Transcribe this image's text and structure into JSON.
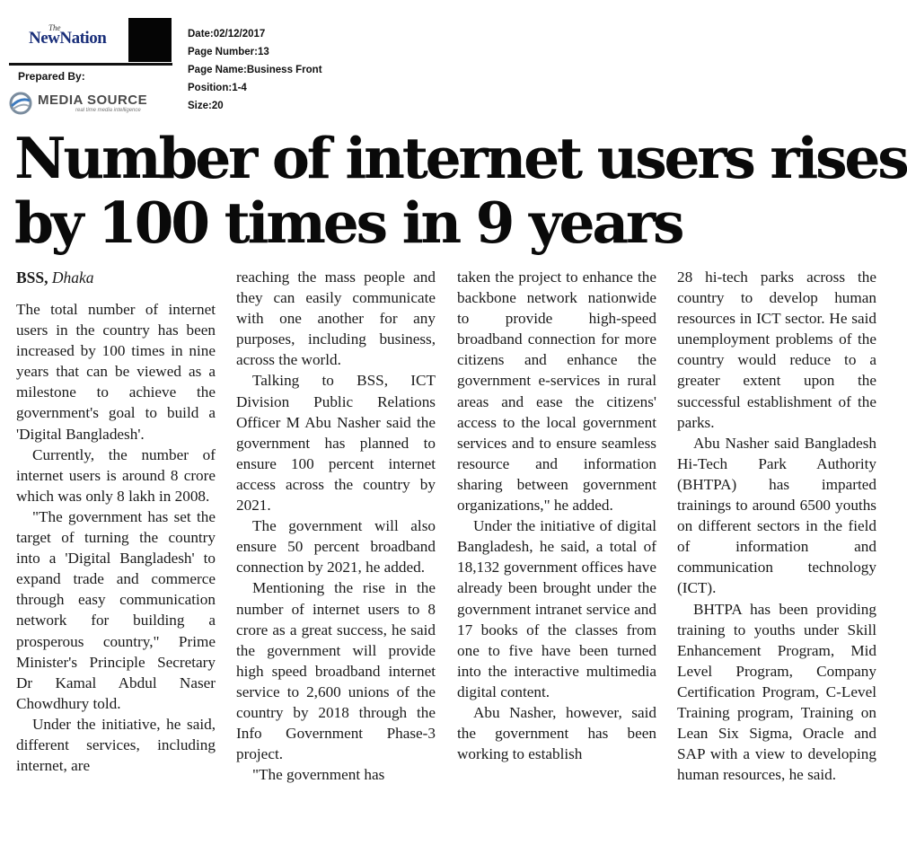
{
  "masthead": {
    "logo_small": "The",
    "logo_name": "NewNation",
    "prepared_by": "Prepared By:",
    "media_source": "MEDIA SOURCE",
    "media_tagline": "real time media intelligence"
  },
  "meta": {
    "date": "Date:02/12/2017",
    "page_number": "Page Number:13",
    "page_name": "Page Name:Business Front",
    "position": "Position:1-4",
    "size": "Size:20"
  },
  "headline": {
    "line1": "Number of internet users rises",
    "line2": "by 100 times in 9 years"
  },
  "byline": {
    "agency": "BSS,",
    "place": "Dhaka"
  },
  "article": {
    "col1": [
      "The total number of internet users in the country has been increased by 100 times in nine years that can be viewed as a milestone to achieve the government's goal to build a 'Digital Bangladesh'.",
      "Currently, the number of internet users is around 8 crore which was only 8 lakh in 2008.",
      "\"The government has set the target of turning the country into a 'Digital Bangladesh' to expand trade and commerce through easy communication network for building a prosperous country,\" Prime Minister's Principle Secretary Dr Kamal Abdul Naser Chowdhury told.",
      "Under the initiative, he said, different services, including internet, are"
    ],
    "col2": [
      "reaching the mass people and they can easily communicate with one another for any purposes, including business, across the world.",
      "Talking to BSS, ICT Division Public Relations Officer M Abu Nasher said the government has planned to ensure 100 percent internet access across the country by 2021.",
      "The government will also ensure 50 percent broadband connection by 2021, he added.",
      "Mentioning the rise in the number of internet users to 8 crore as a great success, he said the government will provide high speed broadband internet service to 2,600 unions of the country by 2018 through the Info Government Phase-3 project.",
      "\"The government has"
    ],
    "col3": [
      "taken the project to enhance the backbone network nationwide to provide high-speed broadband connection for more citizens and enhance the government e-services in rural areas and ease the citizens' access to the local government services and to ensure seamless resource and information sharing between government organizations,\" he added.",
      "Under the initiative of digital Bangladesh, he said, a total of 18,132 government offices have already been brought under the government intranet service and 17 books of the classes from one to five have been turned into the interactive multimedia digital content.",
      "Abu Nasher, however, said the government has been working to establish"
    ],
    "col4": [
      "28 hi-tech parks across the country to develop human resources in ICT sector. He said unemployment problems of the country would reduce to a greater extent upon the successful establishment of the parks.",
      "Abu Nasher said Bangladesh Hi-Tech Park Authority (BHTPA) has imparted trainings to around 6500 youths on different sectors in the field of information and communication technology (ICT).",
      "BHTPA has been providing training to youths under Skill Enhancement Program, Mid Level Program, Company Certification Program, C-Level Training program, Training on Lean Six Sigma, Oracle and SAP with a view to developing human resources, he said."
    ]
  }
}
